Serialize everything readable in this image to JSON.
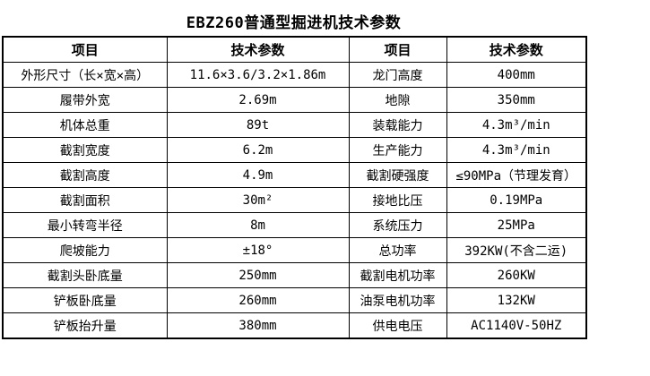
{
  "title": "EBZ260普通型掘进机技术参数",
  "table": {
    "headers": [
      "项目",
      "技术参数",
      "项目",
      "技术参数"
    ],
    "rows": [
      [
        "外形尺寸（长×宽×高）",
        "11.6×3.6/3.2×1.86m",
        "龙门高度",
        "400mm"
      ],
      [
        "履带外宽",
        "2.69m",
        "地隙",
        "350mm"
      ],
      [
        "机体总重",
        "89t",
        "装载能力",
        "4.3m³/min"
      ],
      [
        "截割宽度",
        "6.2m",
        "生产能力",
        "4.3m³/min"
      ],
      [
        "截割高度",
        "4.9m",
        "截割硬强度",
        "≤90MPa（节理发育）"
      ],
      [
        "截割面积",
        "30m²",
        "接地比压",
        "0.19MPa"
      ],
      [
        "最小转弯半径",
        "8m",
        "系统压力",
        "25MPa"
      ],
      [
        "爬坡能力",
        "±18°",
        "总功率",
        "392KW(不含二运)"
      ],
      [
        "截割头卧底量",
        "250mm",
        "截割电机功率",
        "260KW"
      ],
      [
        "铲板卧底量",
        "260mm",
        "油泵电机功率",
        "132KW"
      ],
      [
        "铲板抬升量",
        "380mm",
        "供电电压",
        "AC1140V-50HZ"
      ]
    ]
  },
  "colors": {
    "background": "#ffffff",
    "border": "#000000",
    "text": "#000000"
  }
}
